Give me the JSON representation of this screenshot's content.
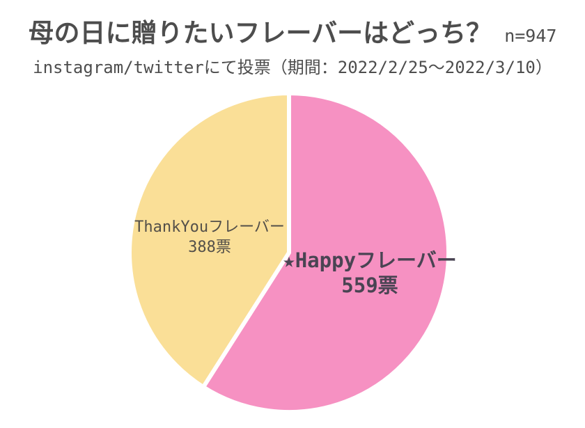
{
  "page": {
    "background": "#FFFFFF"
  },
  "header": {
    "title": "母の日に贈りたいフレーバーはどっち？",
    "sample_size": "n=947",
    "subtitle": "instagram/twitterにて投票（期間：2022/2/25～2022/3/10）",
    "text_color": "#4D4D4D"
  },
  "chart_data": {
    "type": "pie",
    "title": "母の日に贈りたいフレーバーはどっち？",
    "subtitle": "instagram/twitterにて投票（期間：2022/2/25～2022/3/10）",
    "n_total": 947,
    "units": "票",
    "start_angle_deg": 0,
    "direction": "clockwise",
    "separator_color": "#FFFFFF",
    "labels_position": "inside",
    "slices": [
      {
        "id": "happy",
        "label": "★Happyフレーバー",
        "value": 559,
        "value_label": "559票",
        "percent": 59.0,
        "color": "#F691C2",
        "text_color": "#4A4453",
        "emphasis": true
      },
      {
        "id": "thankyou",
        "label": "ThankYouフレーバー",
        "value": 388,
        "value_label": "388票",
        "percent": 41.0,
        "color": "#FADF97",
        "text_color": "#534F49",
        "emphasis": false
      }
    ]
  }
}
